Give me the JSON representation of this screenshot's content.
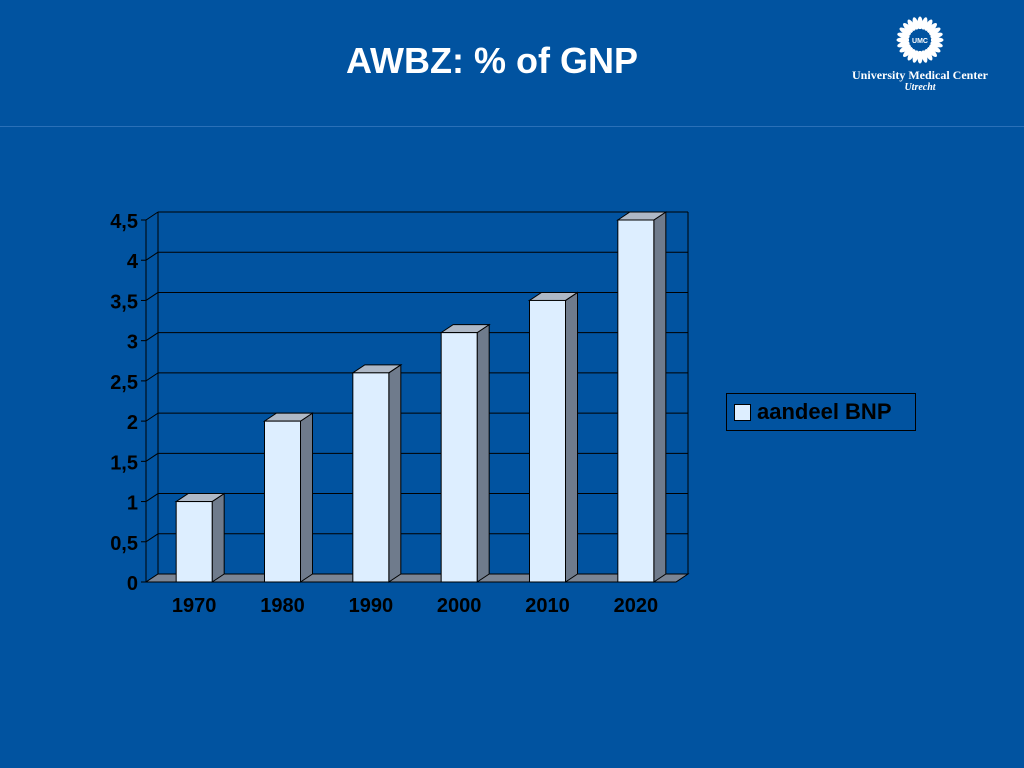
{
  "slide": {
    "title": "AWBZ: % of GNP"
  },
  "logo": {
    "emblem_text": "UMC",
    "line1": "University Medical Center",
    "line2": "Utrecht"
  },
  "colors": {
    "background": "#0153A0",
    "bar_front": "#DDEEFF",
    "bar_side": "#6F7B8C",
    "bar_top": "#AEB8C6",
    "floor": "#7B8594",
    "gridline": "#000000"
  },
  "chart_data": {
    "type": "bar",
    "categories": [
      "1970",
      "1980",
      "1990",
      "2000",
      "2010",
      "2020"
    ],
    "series": [
      {
        "name": "aandeel BNP",
        "values": [
          1,
          2,
          2.6,
          3.1,
          3.5,
          4.5
        ]
      }
    ],
    "yticks": [
      "0",
      "0,5",
      "1",
      "1,5",
      "2",
      "2,5",
      "3",
      "3,5",
      "4",
      "4,5"
    ],
    "ylim": [
      0,
      4.5
    ],
    "grid": true,
    "legend_position": "right",
    "style": "3d-column"
  }
}
